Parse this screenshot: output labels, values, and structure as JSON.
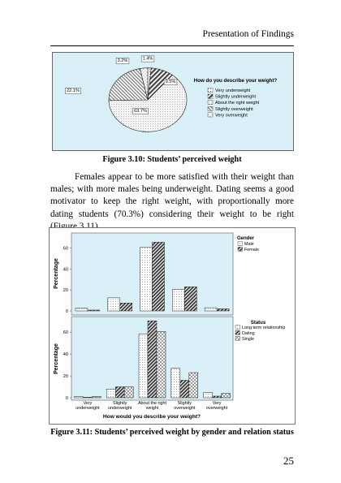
{
  "page": {
    "header": "Presentation of Findings",
    "figure1_caption": "Figure 3.10: Students’ perceived weight",
    "paragraph": "Females appear to be more satisfied with their weight than males; with more males being underweight. Dating seems a good motivator to keep the right weight, with proportionally more dating students (70.3%) considering their weight to be right (Figure 3.11).",
    "figure2_caption": "Figure 3.11: Students’ perceived weight by gender and relation status",
    "page_number": "25"
  },
  "chart_data": [
    {
      "type": "pie",
      "legend_title": "How do you describe your weight?",
      "legend_placement": "right",
      "background": "#d9f0f8",
      "slices": [
        {
          "label": "Very underweight",
          "value": 1.4,
          "text": "1.4%",
          "fill": "#bdbdbd"
        },
        {
          "label": "Slightly underweight",
          "value": 9.5,
          "text": "9.5%",
          "fill": "#555555"
        },
        {
          "label": "About the right weight",
          "value": 63.7,
          "text": "63.7%",
          "fill": "#eaeaea"
        },
        {
          "label": "Slightly overweight",
          "value": 22.1,
          "text": "22.1%",
          "fill": "#a3a3a3"
        },
        {
          "label": "Very overweight",
          "value": 3.2,
          "text": "3.2%",
          "fill": "#ffffff"
        }
      ]
    },
    {
      "type": "bar",
      "panel": "Gender",
      "categories": [
        "Very underweight",
        "Slightly underweight",
        "About the right weight",
        "Slightly overweight",
        "Very overweight"
      ],
      "ylabel": "Percentage",
      "yticks": [
        "0",
        "20",
        "40",
        "60"
      ],
      "ylim": [
        0,
        72
      ],
      "legend_title": "Gender",
      "legend_placement": "top-right",
      "series": [
        {
          "name": "Male",
          "values": [
            2.5,
            12.5,
            60.5,
            20.5,
            3.0
          ],
          "fill": "#f2f2f2"
        },
        {
          "name": "Female",
          "values": [
            0.8,
            7.5,
            65.5,
            23.0,
            2.0
          ],
          "fill": "#606060"
        }
      ]
    },
    {
      "type": "bar",
      "panel": "Status",
      "categories": [
        "Very underweight",
        "Slightly underweight",
        "About the right weight",
        "Slightly overweight",
        "Very overweight"
      ],
      "tick_labels": [
        [
          "Very",
          "underweight"
        ],
        [
          "Slightly",
          "underweight"
        ],
        [
          "About the right",
          "weight"
        ],
        [
          "Slightly",
          "overweight"
        ],
        [
          "Very",
          "overweight"
        ]
      ],
      "xlabel": "How would you describe your weight?",
      "ylabel": "Percentage",
      "yticks": [
        "0",
        "20",
        "40",
        "60"
      ],
      "ylim": [
        0,
        72
      ],
      "legend_title": "Status",
      "legend_placement": "top-right",
      "series": [
        {
          "name": "Long term relationship",
          "values": [
            1.0,
            8.0,
            58.5,
            27.0,
            5.0
          ],
          "fill": "#f2f2f2"
        },
        {
          "name": "Dating",
          "values": [
            0.5,
            10.0,
            70.3,
            16.0,
            1.5
          ],
          "fill": "#606060"
        },
        {
          "name": "Single",
          "values": [
            1.2,
            10.0,
            60.5,
            23.0,
            4.0
          ],
          "fill": "#d0d0d0"
        }
      ]
    }
  ]
}
